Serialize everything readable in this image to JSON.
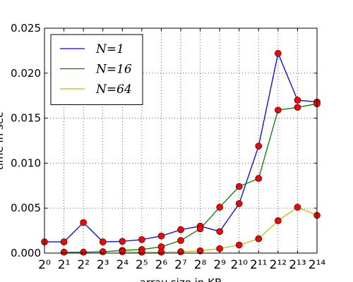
{
  "chart_data": {
    "type": "line",
    "x_label": "array size in KB",
    "y_label": "time in sec",
    "x": [
      1,
      2,
      4,
      8,
      16,
      32,
      64,
      128,
      256,
      512,
      1024,
      2048,
      4096,
      8192,
      16384
    ],
    "series": [
      {
        "name": "N=1",
        "color": "#0000ff",
        "values": [
          0.00125,
          0.00125,
          0.0034,
          0.00125,
          0.0013,
          0.0015,
          0.0019,
          0.0026,
          0.003,
          0.0024,
          0.0055,
          0.0119,
          0.0222,
          0.017,
          0.0168
        ]
      },
      {
        "name": "N=16",
        "color": "#008000",
        "values": [
          null,
          0.0001,
          0.0001,
          0.00015,
          0.0003,
          0.0004,
          0.0007,
          0.0014,
          0.0027,
          0.0051,
          0.0074,
          0.0083,
          0.0159,
          0.0162,
          0.0166
        ]
      },
      {
        "name": "N=64",
        "color": "#bfbf00",
        "values": [
          null,
          null,
          null,
          null,
          0.00015,
          0.0001,
          0.0001,
          0.00015,
          0.00025,
          0.0005,
          0.0009,
          0.0016,
          0.0036,
          0.0051,
          0.0042
        ]
      }
    ],
    "marker_color": "#ff0000",
    "xscale": "log2",
    "xlim": [
      1,
      16384
    ],
    "xticks": [
      {
        "value": 1,
        "label": "2⁰"
      },
      {
        "value": 2,
        "label": "2¹"
      },
      {
        "value": 4,
        "label": "2²"
      },
      {
        "value": 8,
        "label": "2³"
      },
      {
        "value": 16,
        "label": "2⁴"
      },
      {
        "value": 32,
        "label": "2⁵"
      },
      {
        "value": 64,
        "label": "2⁶"
      },
      {
        "value": 128,
        "label": "2⁷"
      },
      {
        "value": 256,
        "label": "2⁸"
      },
      {
        "value": 512,
        "label": "2⁹"
      },
      {
        "value": 1024,
        "label": "2¹⁰"
      },
      {
        "value": 2048,
        "label": "2¹¹"
      },
      {
        "value": 4096,
        "label": "2¹²"
      },
      {
        "value": 8192,
        "label": "2¹³"
      },
      {
        "value": 16384,
        "label": "2¹⁴"
      }
    ],
    "ylim": [
      0,
      0.025
    ],
    "yticks": [
      {
        "value": 0,
        "label": "0.000"
      },
      {
        "value": 0.005,
        "label": "0.005"
      },
      {
        "value": 0.01,
        "label": "0.010"
      },
      {
        "value": 0.015,
        "label": "0.015"
      },
      {
        "value": 0.02,
        "label": "0.020"
      },
      {
        "value": 0.025,
        "label": "0.025"
      }
    ],
    "grid": true,
    "legend": "upper left"
  }
}
